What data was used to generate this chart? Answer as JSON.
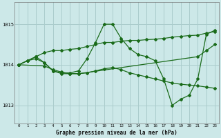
{
  "title": "Graphe pression niveau de la mer (hPa)",
  "background_color": "#cce8e8",
  "grid_color": "#aacccc",
  "line_color": "#1a6b1a",
  "xlim": [
    -0.5,
    23.5
  ],
  "ylim": [
    1012.55,
    1015.55
  ],
  "yticks": [
    1013,
    1014,
    1015
  ],
  "xticks": [
    0,
    1,
    2,
    3,
    4,
    5,
    6,
    7,
    8,
    9,
    10,
    11,
    12,
    13,
    14,
    15,
    16,
    17,
    18,
    19,
    20,
    21,
    22,
    23
  ],
  "series": [
    {
      "x": [
        0,
        1,
        2,
        3,
        4,
        5,
        6,
        7,
        8,
        9,
        10,
        11,
        12,
        13,
        14,
        15,
        16,
        17,
        18,
        19,
        20,
        21,
        22,
        23
      ],
      "y": [
        1014.0,
        1014.1,
        1014.15,
        1014.05,
        1013.85,
        1013.8,
        1013.8,
        1013.85,
        1014.15,
        1014.55,
        1015.0,
        1015.0,
        1014.65,
        1014.4,
        1014.25,
        1014.2,
        1014.1,
        1013.65,
        1013.0,
        1013.15,
        1013.25,
        1013.65,
        1014.75,
        1014.85
      ]
    },
    {
      "x": [
        0,
        3,
        4,
        5,
        6,
        7,
        8,
        9,
        10,
        11,
        12,
        13,
        14,
        15,
        16,
        17,
        18,
        19,
        20,
        21,
        22,
        23
      ],
      "y": [
        1014.0,
        1013.97,
        1013.88,
        1013.82,
        1013.78,
        1013.78,
        1013.8,
        1013.85,
        1013.9,
        1013.93,
        1013.88,
        1013.8,
        1013.75,
        1013.7,
        1013.65,
        1013.6,
        1013.55,
        1013.52,
        1013.5,
        1013.48,
        1013.45,
        1013.42
      ]
    },
    {
      "x": [
        0,
        1,
        2,
        3,
        4,
        5,
        6,
        7,
        8,
        9,
        10,
        11,
        12,
        13,
        14,
        15,
        16,
        17,
        18,
        19,
        20,
        21,
        22,
        23
      ],
      "y": [
        1014.0,
        1014.1,
        1014.2,
        1014.3,
        1014.35,
        1014.35,
        1014.38,
        1014.4,
        1014.45,
        1014.5,
        1014.55,
        1014.55,
        1014.58,
        1014.6,
        1014.6,
        1014.62,
        1014.63,
        1014.65,
        1014.68,
        1014.7,
        1014.72,
        1014.73,
        1014.78,
        1014.82
      ]
    },
    {
      "x": [
        0,
        1,
        2,
        3,
        4,
        5,
        6,
        7,
        21,
        22,
        23
      ],
      "y": [
        1014.0,
        1014.1,
        1014.2,
        1014.05,
        1013.85,
        1013.78,
        1013.78,
        1013.78,
        1014.2,
        1014.35,
        1014.5
      ]
    }
  ]
}
